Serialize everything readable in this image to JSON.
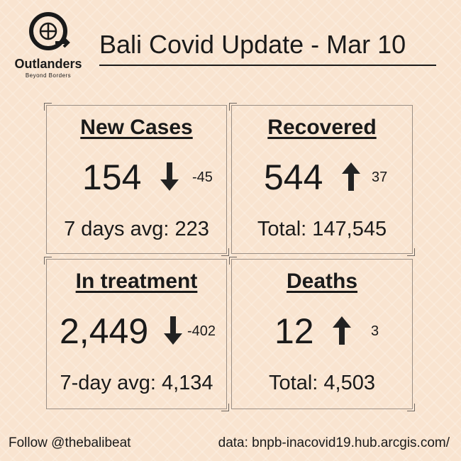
{
  "logo": {
    "name": "Outlanders",
    "tagline": "Beyond Borders"
  },
  "header": {
    "title": "Bali Covid Update - Mar 10"
  },
  "cards": [
    {
      "heading": "New Cases",
      "value": "154",
      "change": "-45",
      "footer": "7 days avg: 223"
    },
    {
      "heading": "Recovered",
      "value": "544",
      "change": "37",
      "footer": "Total: 147,545"
    },
    {
      "heading": "In treatment",
      "value": "2,449",
      "change": "-402",
      "footer": "7-day avg: 4,134"
    },
    {
      "heading": "Deaths",
      "value": "12",
      "change": "3",
      "footer": "Total: 4,503"
    }
  ],
  "footer": {
    "follow": "Follow @thebalibeat",
    "source": "data: bnpb-inacovid19.hub.arcgis.com/"
  }
}
